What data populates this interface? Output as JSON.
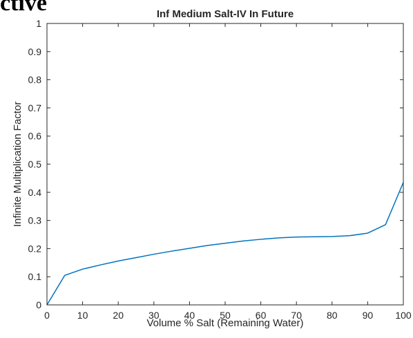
{
  "page": {
    "heading": "ctive"
  },
  "chart_data": {
    "type": "line",
    "title": "Inf Medium Salt-IV In Future",
    "xlabel": "Volume % Salt (Remaining Water)",
    "ylabel": "Infinite Multiplication Factor",
    "xlim": [
      0,
      100
    ],
    "ylim": [
      0,
      1
    ],
    "xticks": [
      0,
      10,
      20,
      30,
      40,
      50,
      60,
      70,
      80,
      90,
      100
    ],
    "yticks": [
      0,
      0.1,
      0.2,
      0.3,
      0.4,
      0.5,
      0.6,
      0.7,
      0.8,
      0.9,
      1
    ],
    "xtick_labels": [
      "0",
      "10",
      "20",
      "30",
      "40",
      "50",
      "60",
      "70",
      "80",
      "90",
      "100"
    ],
    "ytick_labels": [
      "0",
      "0.1",
      "0.2",
      "0.3",
      "0.4",
      "0.5",
      "0.6",
      "0.7",
      "0.8",
      "0.9",
      "1"
    ],
    "grid": false,
    "box": true,
    "series": [
      {
        "color": "#0072bd",
        "x": [
          0,
          5,
          10,
          15,
          20,
          25,
          30,
          35,
          40,
          45,
          50,
          55,
          60,
          65,
          70,
          75,
          80,
          85,
          90,
          95,
          100
        ],
        "y": [
          0,
          0.105,
          0.127,
          0.142,
          0.156,
          0.168,
          0.18,
          0.191,
          0.201,
          0.211,
          0.219,
          0.227,
          0.233,
          0.238,
          0.241,
          0.242,
          0.243,
          0.246,
          0.255,
          0.285,
          0.435
        ]
      }
    ]
  }
}
